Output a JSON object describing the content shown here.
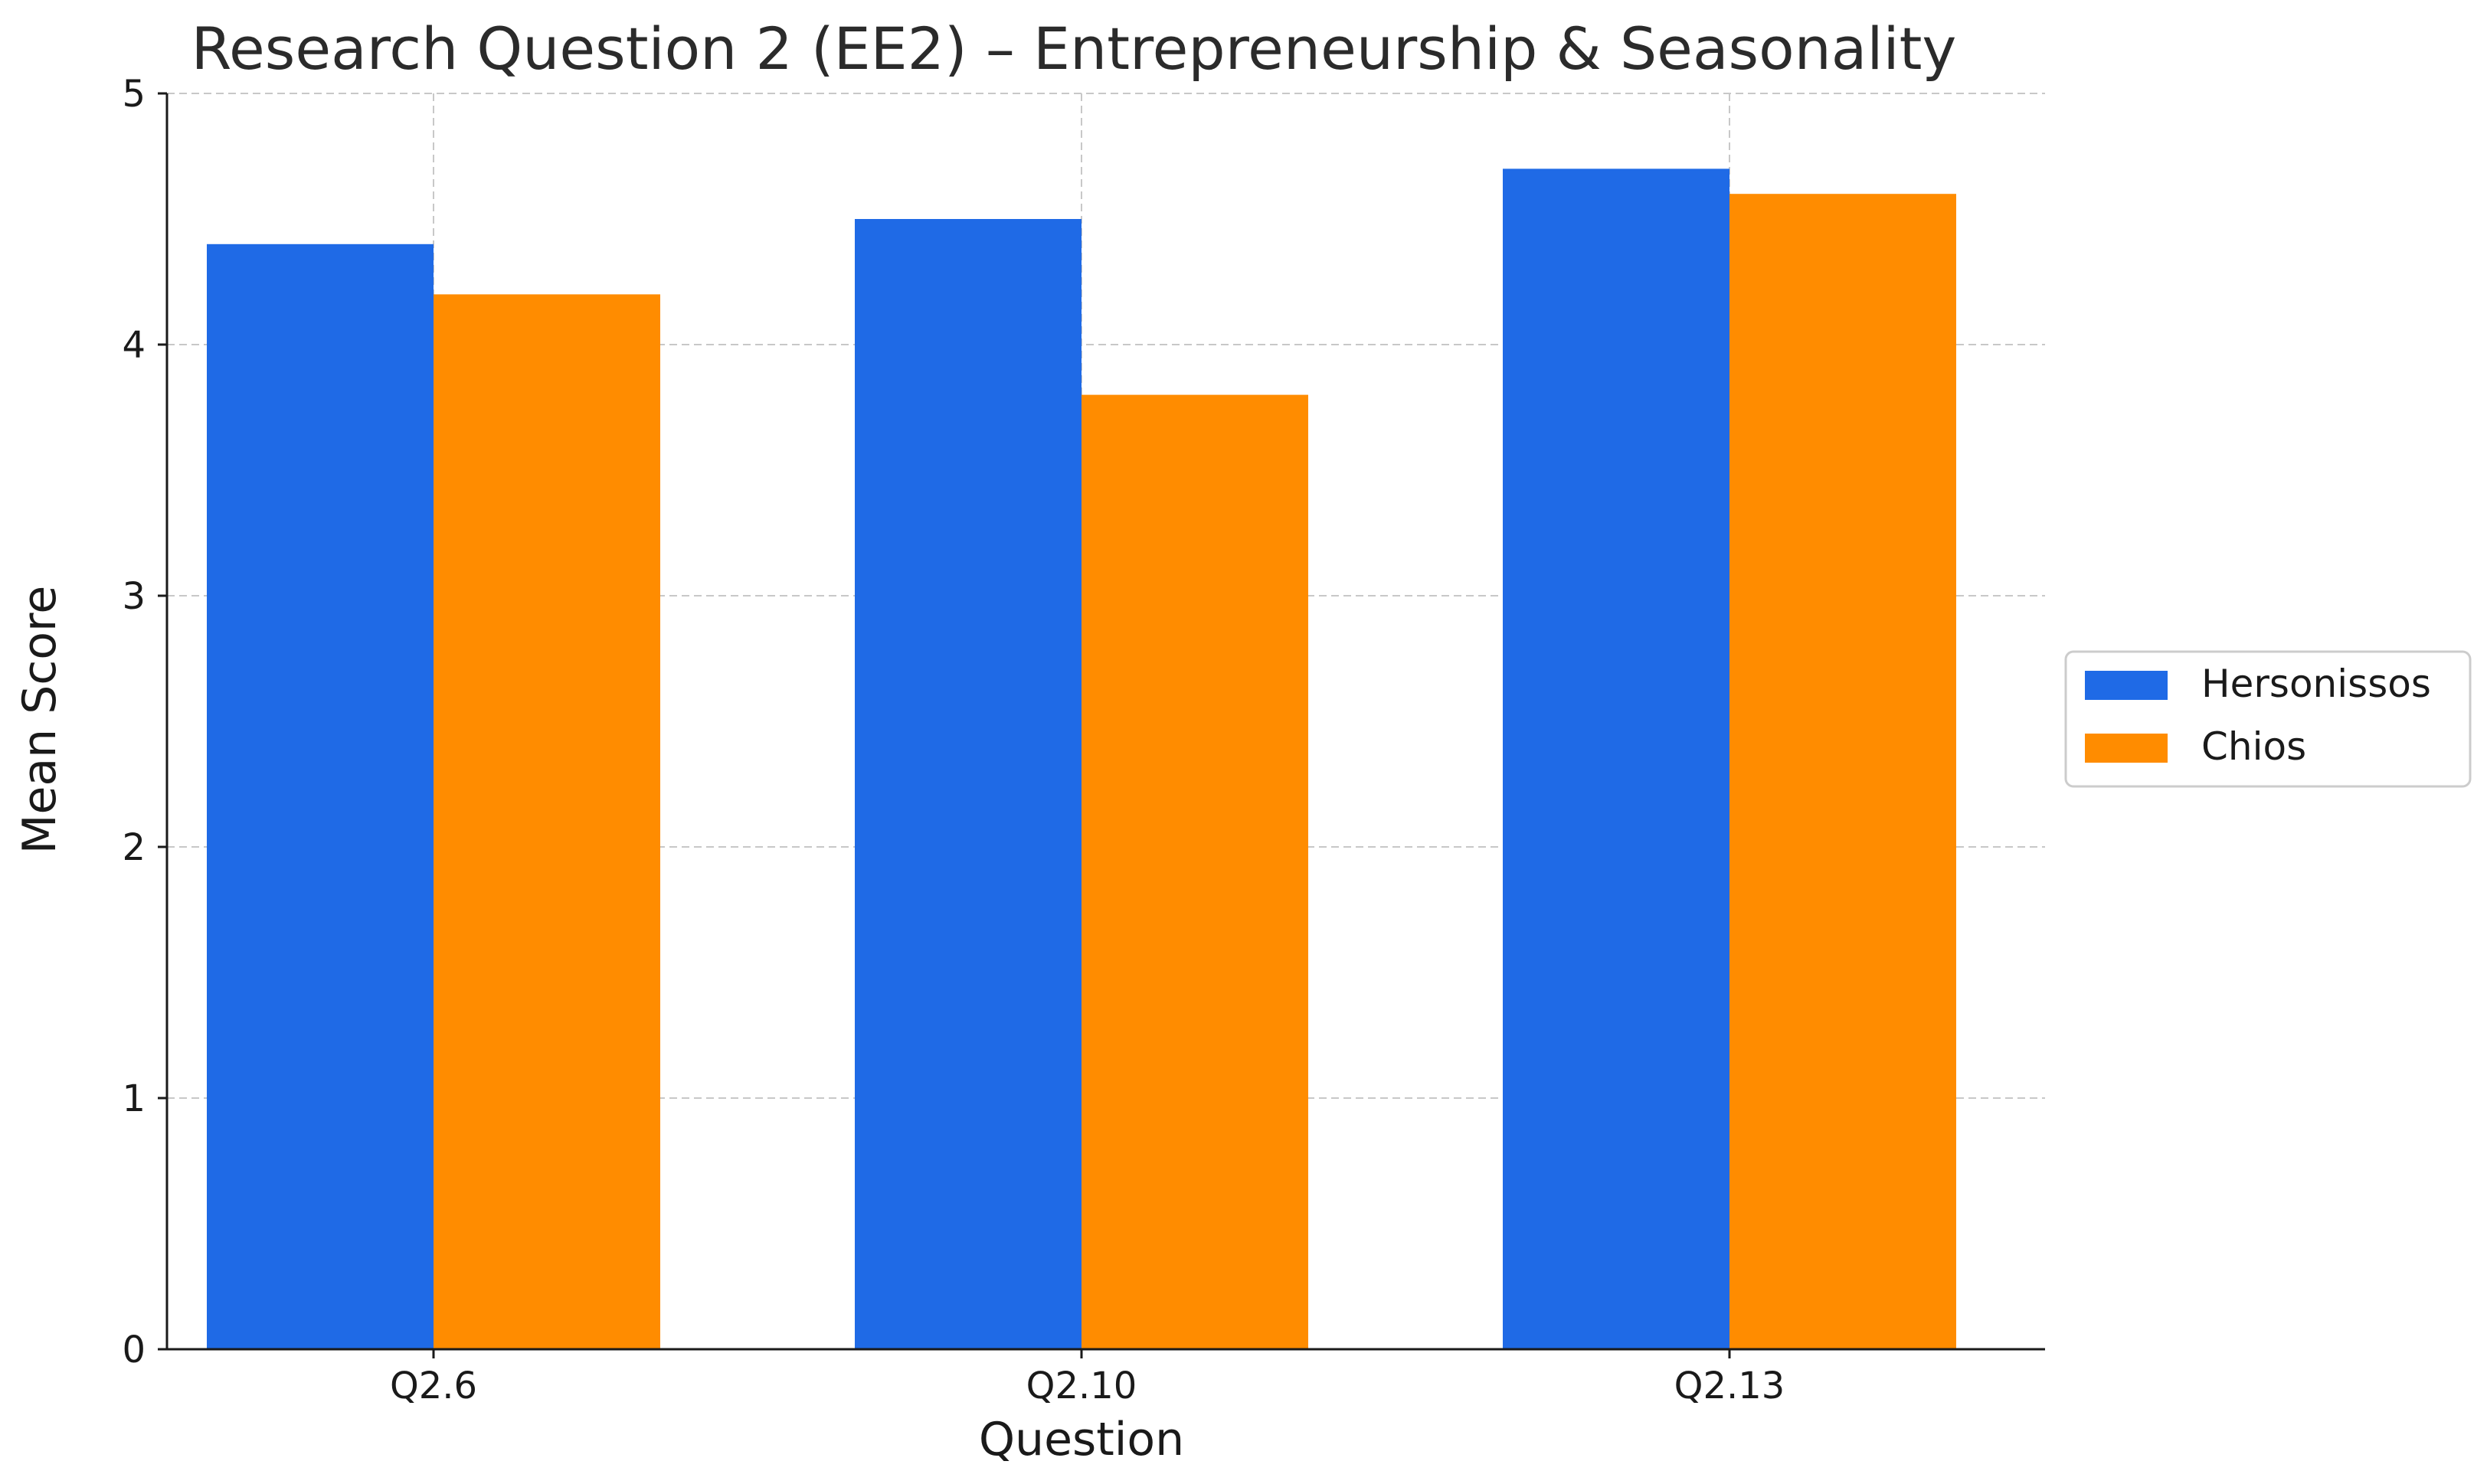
{
  "chart_data": {
    "type": "bar",
    "title": "Research Question 2 (EE2) – Entrepreneurship & Seasonality",
    "xlabel": "Question",
    "ylabel": "Mean Score",
    "categories": [
      "Q2.6",
      "Q2.10",
      "Q2.13"
    ],
    "series": [
      {
        "name": "Hersonissos",
        "values": [
          4.4,
          4.5,
          4.7
        ],
        "color": "#1f6ae6"
      },
      {
        "name": "Chios",
        "values": [
          4.2,
          3.8,
          4.6
        ],
        "color": "#ff8c00"
      }
    ],
    "ylim": [
      0,
      5
    ],
    "yticks": [
      0,
      1,
      2,
      3,
      4,
      5
    ],
    "grid": true,
    "legend": "center-right"
  }
}
